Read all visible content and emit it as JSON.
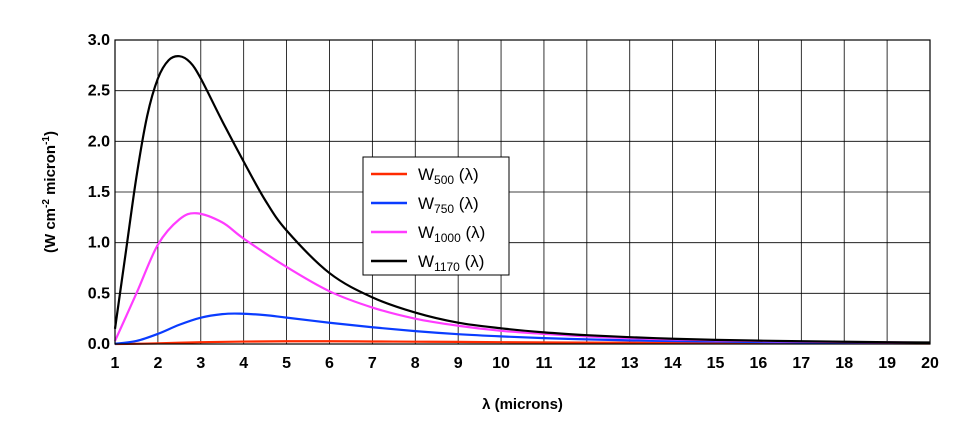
{
  "chart_data": {
    "type": "line",
    "xlabel": "λ (microns)",
    "ylabel": {
      "pre": "(W cm",
      "sup1": "-2",
      "mid": " micron",
      "sup2": "-1",
      "post": ")"
    },
    "xlim": [
      1,
      20
    ],
    "ylim": [
      0,
      3.0
    ],
    "xticks": [
      "1",
      "2",
      "3",
      "4",
      "5",
      "6",
      "7",
      "8",
      "9",
      "10",
      "11",
      "12",
      "13",
      "14",
      "15",
      "16",
      "17",
      "18",
      "19",
      "20"
    ],
    "yticks": [
      "0.0",
      "0.5",
      "1.0",
      "1.5",
      "2.0",
      "2.5",
      "3.0"
    ],
    "grid": true,
    "legend_position": "center",
    "series": [
      {
        "name": "W500 (λ)",
        "label_main": "W",
        "label_sub": "500",
        "label_tail": " (λ)",
        "color": "#ff2a00",
        "x": [
          1,
          2,
          3,
          4,
          5,
          6,
          7,
          8,
          9,
          10,
          12,
          14,
          16,
          18,
          20
        ],
        "y": [
          0.0,
          0.006,
          0.018,
          0.024,
          0.027,
          0.027,
          0.025,
          0.023,
          0.021,
          0.018,
          0.014,
          0.011,
          0.008,
          0.006,
          0.005
        ]
      },
      {
        "name": "W750 (λ)",
        "label_main": "W",
        "label_sub": "750",
        "label_tail": " (λ)",
        "color": "#0a3cff",
        "x": [
          1,
          1.5,
          2,
          2.5,
          3,
          3.5,
          3.9,
          4.5,
          5,
          6,
          7,
          8,
          9,
          10,
          11,
          12,
          13,
          14,
          15,
          16,
          17,
          18,
          19,
          20
        ],
        "y": [
          0.002,
          0.03,
          0.1,
          0.19,
          0.26,
          0.295,
          0.3,
          0.285,
          0.26,
          0.21,
          0.165,
          0.127,
          0.097,
          0.075,
          0.058,
          0.046,
          0.036,
          0.029,
          0.024,
          0.019,
          0.016,
          0.013,
          0.011,
          0.009
        ]
      },
      {
        "name": "W1000 (λ)",
        "label_main": "W",
        "label_sub": "1000",
        "label_tail": " (λ)",
        "color": "#ff3cff",
        "x": [
          1,
          1.5,
          2,
          2.5,
          2.9,
          3.5,
          4,
          5,
          6,
          7,
          8,
          9,
          10,
          11,
          12,
          13,
          14,
          15,
          16,
          17,
          18,
          19,
          20
        ],
        "y": [
          0.03,
          0.5,
          0.98,
          1.23,
          1.29,
          1.2,
          1.04,
          0.76,
          0.52,
          0.36,
          0.25,
          0.18,
          0.13,
          0.1,
          0.075,
          0.058,
          0.045,
          0.036,
          0.029,
          0.023,
          0.019,
          0.016,
          0.013
        ]
      },
      {
        "name": "W1170 (λ)",
        "label_main": "W",
        "label_sub": "1170",
        "label_tail": " (λ)",
        "color": "#000000",
        "x": [
          1,
          1.25,
          1.5,
          1.75,
          2,
          2.25,
          2.5,
          2.75,
          3,
          3.5,
          4,
          4.5,
          5,
          6,
          7,
          8,
          9,
          10,
          11,
          12,
          13,
          14,
          15,
          16,
          17,
          18,
          19,
          20
        ],
        "y": [
          0.15,
          0.9,
          1.65,
          2.25,
          2.62,
          2.8,
          2.84,
          2.78,
          2.62,
          2.2,
          1.8,
          1.42,
          1.12,
          0.7,
          0.46,
          0.31,
          0.21,
          0.155,
          0.115,
          0.087,
          0.067,
          0.052,
          0.041,
          0.033,
          0.027,
          0.022,
          0.018,
          0.015
        ]
      }
    ]
  }
}
